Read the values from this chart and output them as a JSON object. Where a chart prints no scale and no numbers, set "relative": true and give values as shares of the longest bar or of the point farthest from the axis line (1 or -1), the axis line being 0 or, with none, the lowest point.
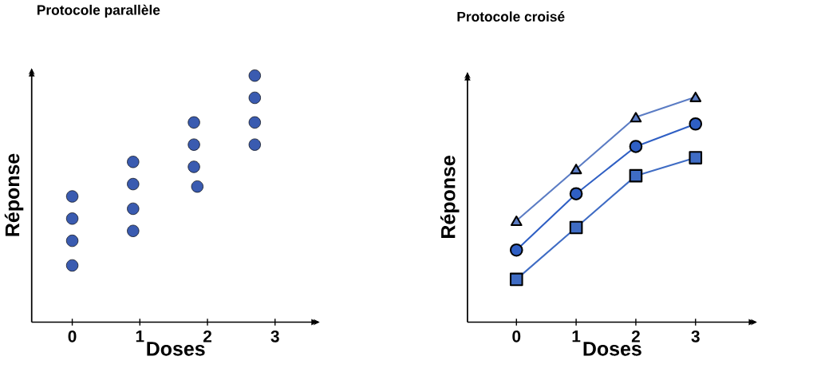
{
  "chart_data": [
    {
      "type": "scatter",
      "title": "Protocole parallèle",
      "xlabel": "Doses",
      "ylabel": "Réponse",
      "relative": true,
      "x": [
        0,
        0,
        0,
        0,
        0.9,
        0.9,
        0.9,
        0.9,
        1.8,
        1.8,
        1.8,
        1.85,
        2.7,
        2.7,
        2.7,
        2.7
      ],
      "series": [
        {
          "color": "#3a5bb0",
          "marker": "circle",
          "values": [
            0.51,
            0.42,
            0.33,
            0.23,
            0.65,
            0.56,
            0.46,
            0.37,
            0.81,
            0.72,
            0.63,
            0.55,
            1,
            0.91,
            0.81,
            0.72
          ]
        }
      ],
      "xlim": [
        -0.6,
        3.66
      ],
      "xticks": [
        0,
        1,
        2,
        3
      ]
    },
    {
      "type": "line",
      "title": "Protocole croisé",
      "xlabel": "Doses",
      "ylabel": "Réponse",
      "relative": true,
      "x": [
        0,
        1,
        2,
        3
      ],
      "series": [
        {
          "color": "#5b7cc4",
          "marker": "triangle",
          "values": [
            0.45,
            0.68,
            0.91,
            1
          ]
        },
        {
          "color": "#2f5fc4",
          "marker": "circle",
          "values": [
            0.32,
            0.57,
            0.78,
            0.88
          ]
        },
        {
          "color": "#3f6cc4",
          "marker": "square",
          "values": [
            0.19,
            0.42,
            0.65,
            0.73
          ]
        }
      ],
      "xlim": [
        -0.82,
        4.03
      ],
      "xticks": [
        0,
        1,
        2,
        3
      ]
    }
  ]
}
